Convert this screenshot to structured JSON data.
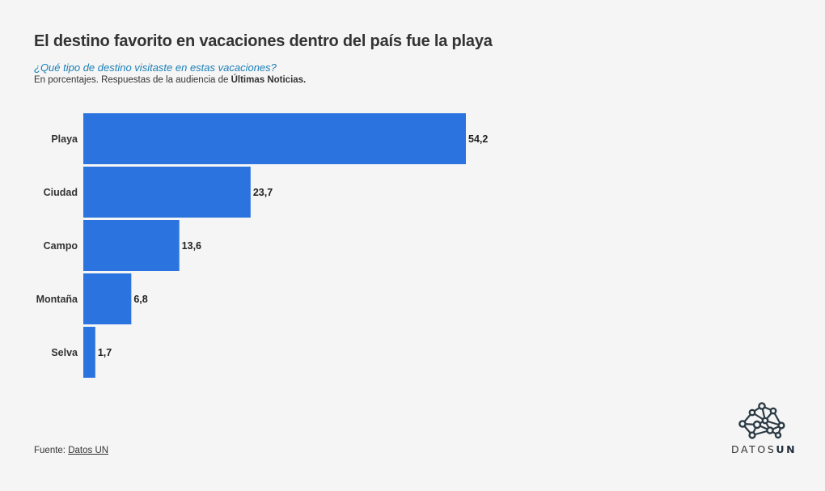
{
  "header": {
    "title": "El destino favorito en vacaciones dentro del país fue la playa",
    "subtitle": "¿Qué tipo de destino visitaste en estas vacaciones?",
    "description_prefix": "En porcentajes. Respuestas de la audiencia de ",
    "description_bold": "Últimas Noticias."
  },
  "footer": {
    "source_label": "Fuente: ",
    "source_link": "Datos UN"
  },
  "logo": {
    "text_light": "DATOS",
    "text_bold": "UN",
    "icon": "network-nodes-icon"
  },
  "colors": {
    "bar": "#2b74df",
    "subtitle": "#1a7fb5",
    "background": "#f5f5f5",
    "logo": "#2a3a44"
  },
  "chart_data": {
    "type": "bar",
    "orientation": "horizontal",
    "categories": [
      "Playa",
      "Ciudad",
      "Campo",
      "Montaña",
      "Selva"
    ],
    "values": [
      54.2,
      23.7,
      13.6,
      6.8,
      1.7
    ],
    "value_labels": [
      "54,2",
      "23,7",
      "13,6",
      "6,8",
      "1,7"
    ],
    "xlim": [
      0,
      54.2
    ],
    "grid": false,
    "legend": "none",
    "title": "El destino favorito en vacaciones dentro del país fue la playa",
    "xlabel": "",
    "ylabel": ""
  }
}
